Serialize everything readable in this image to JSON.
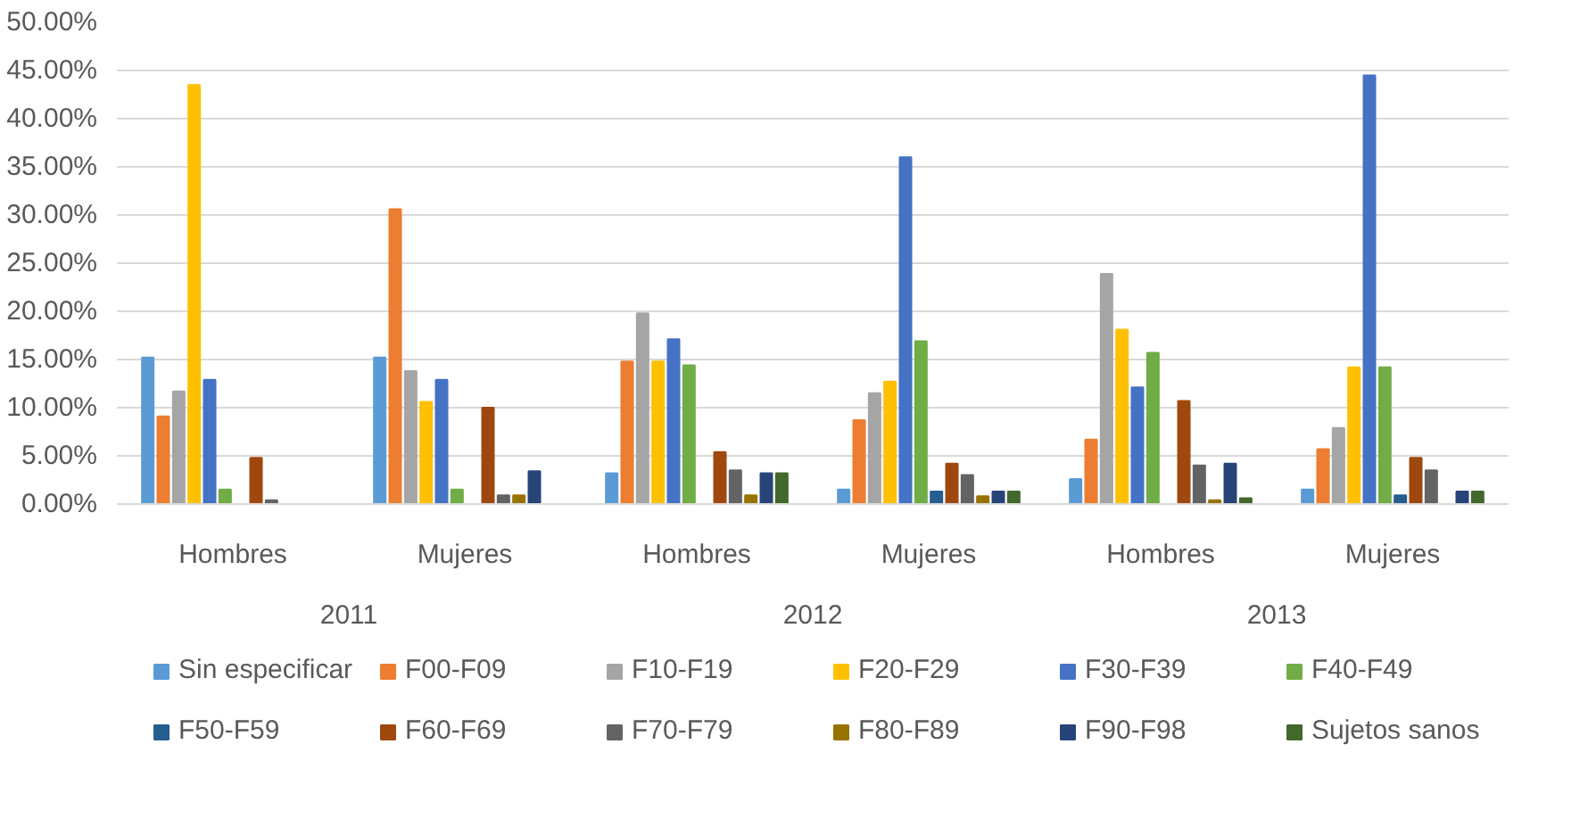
{
  "chart_data": {
    "type": "bar",
    "categories": [
      "Hombres",
      "Mujeres",
      "Hombres",
      "Mujeres",
      "Hombres",
      "Mujeres"
    ],
    "annotations": [
      "2011",
      "2012",
      "2013"
    ],
    "series": [
      {
        "name": "Sin especificar",
        "color": "#5b9bd5",
        "values": [
          15.2,
          15.2,
          3.2,
          1.5,
          2.6,
          1.5
        ]
      },
      {
        "name": "F00-F09",
        "color": "#ed7d31",
        "values": [
          9.1,
          30.6,
          14.8,
          8.7,
          6.7,
          5.7
        ]
      },
      {
        "name": "F10-F19",
        "color": "#a5a5a5",
        "values": [
          11.7,
          13.8,
          19.8,
          11.5,
          23.9,
          7.9
        ]
      },
      {
        "name": "F20-F29",
        "color": "#ffc000",
        "values": [
          43.5,
          10.6,
          14.8,
          12.7,
          18.1,
          14.2
        ]
      },
      {
        "name": "F30-F39",
        "color": "#4472c4",
        "values": [
          12.9,
          12.9,
          17.1,
          36.0,
          12.1,
          44.5
        ]
      },
      {
        "name": "F40-F49",
        "color": "#70ad47",
        "values": [
          1.5,
          1.5,
          14.4,
          16.9,
          15.7,
          14.2
        ]
      },
      {
        "name": "F50-F59",
        "color": "#255e91",
        "values": [
          0,
          0,
          0,
          1.3,
          0,
          0.9
        ]
      },
      {
        "name": "F60-F69",
        "color": "#9e480e",
        "values": [
          4.8,
          10.0,
          5.4,
          4.2,
          10.7,
          4.8
        ]
      },
      {
        "name": "F70-F79",
        "color": "#636363",
        "values": [
          0.4,
          0.9,
          3.5,
          3.0,
          4.0,
          3.5
        ]
      },
      {
        "name": "F80-F89",
        "color": "#997300",
        "values": [
          0,
          0.9,
          0.9,
          0.8,
          0.4,
          0
        ]
      },
      {
        "name": "F90-F98",
        "color": "#264478",
        "values": [
          0,
          3.4,
          3.2,
          1.3,
          4.2,
          1.3
        ]
      },
      {
        "name": "Sujetos sanos",
        "color": "#43682b",
        "values": [
          0,
          0,
          3.2,
          1.3,
          0.6,
          1.3
        ]
      }
    ],
    "ylim": [
      0,
      50
    ],
    "yticks": [
      {
        "value": 0,
        "label": "0.00%"
      },
      {
        "value": 5,
        "label": "5.00%"
      },
      {
        "value": 10,
        "label": "10.00%"
      },
      {
        "value": 15,
        "label": "15.00%"
      },
      {
        "value": 20,
        "label": "20.00%"
      },
      {
        "value": 25,
        "label": "25.00%"
      },
      {
        "value": 30,
        "label": "30.00%"
      },
      {
        "value": 35,
        "label": "35.00%"
      },
      {
        "value": 40,
        "label": "40.00%"
      },
      {
        "value": 45,
        "label": "45.00%"
      },
      {
        "value": 50,
        "label": "50.00%"
      }
    ],
    "grid": "y",
    "legend": "bottom"
  }
}
